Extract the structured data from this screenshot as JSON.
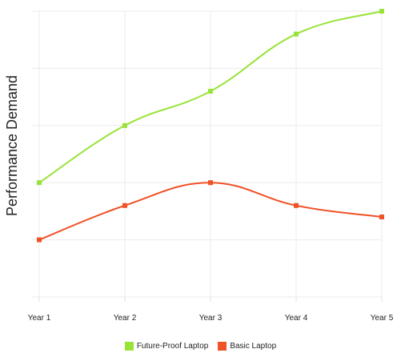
{
  "chart_data": {
    "type": "line",
    "title": "",
    "xlabel": "",
    "ylabel": "Performance Demand",
    "categories": [
      "Year 1",
      "Year 2",
      "Year 3",
      "Year 4",
      "Year 5"
    ],
    "ylim": [
      0,
      5
    ],
    "grid": true,
    "legend_position": "bottom",
    "series": [
      {
        "name": "Future-Proof Laptop",
        "color": "#99e339",
        "values": [
          2.0,
          3.0,
          3.6,
          4.6,
          5.0
        ]
      },
      {
        "name": "Basic Laptop",
        "color": "#f05228",
        "values": [
          1.0,
          1.6,
          2.0,
          1.6,
          1.4
        ]
      }
    ]
  }
}
